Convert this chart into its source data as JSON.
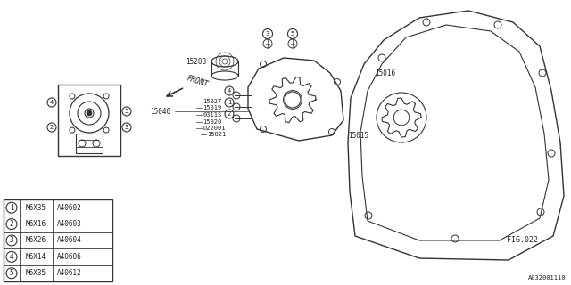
{
  "title": "",
  "background_color": "#ffffff",
  "image_id": "A032001110",
  "fig_ref": "FIG.022",
  "legend": [
    {
      "num": "1",
      "size": "M6X35",
      "part": "A40602"
    },
    {
      "num": "2",
      "size": "M6X16",
      "part": "A40603"
    },
    {
      "num": "3",
      "size": "M6X26",
      "part": "A40604"
    },
    {
      "num": "4",
      "size": "M6X14",
      "part": "A40606"
    },
    {
      "num": "5",
      "size": "M6X35",
      "part": "A40612"
    }
  ],
  "part_labels": [
    "15208",
    "15015",
    "15016",
    "15021",
    "D22001",
    "15020",
    "0311S",
    "15019",
    "15027",
    "15040"
  ],
  "line_color": "#333333",
  "text_color": "#222222",
  "front_label": "FRONT"
}
